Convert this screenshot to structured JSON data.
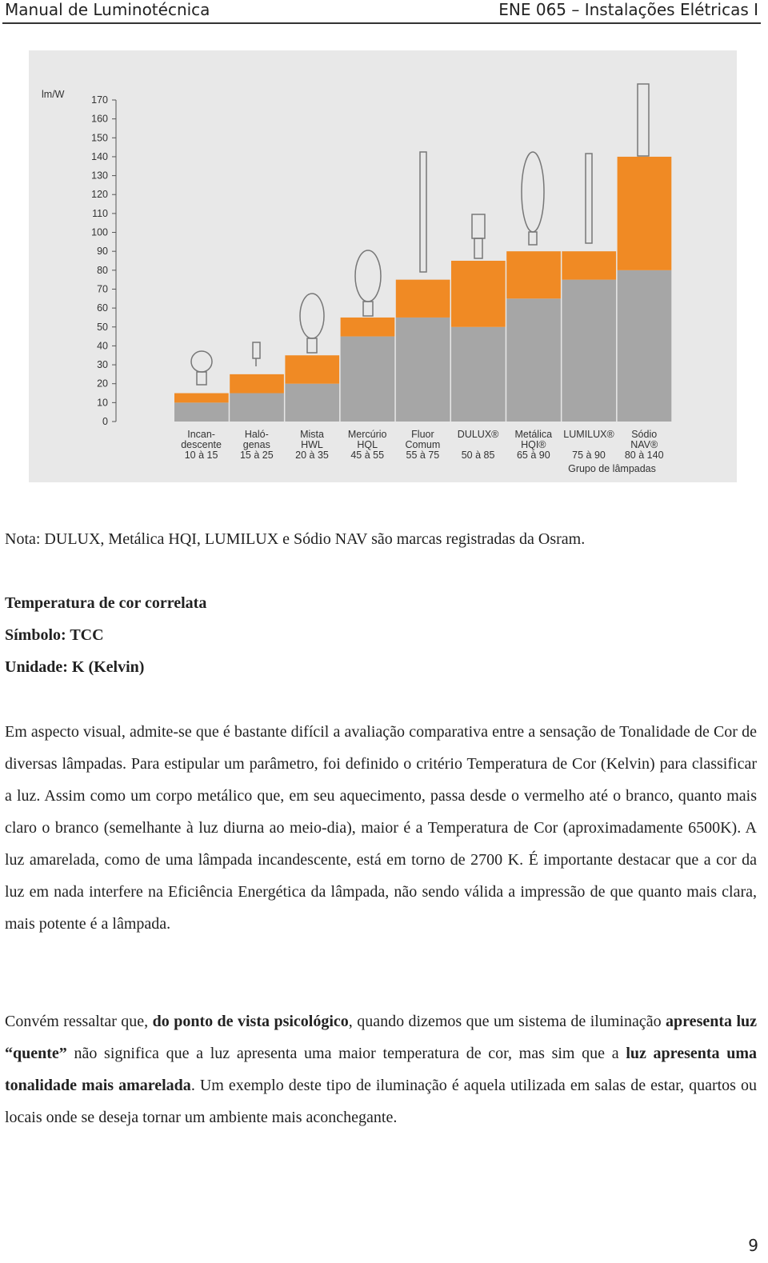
{
  "header": {
    "left": "Manual de Luminotécnica",
    "right": "ENE 065 – Instalações Elétricas I"
  },
  "chart_data": {
    "type": "bar",
    "y_label": "lm/W",
    "x_label": "Grupo de lâmpadas",
    "categories": [
      [
        "Incan-",
        "descente"
      ],
      [
        "Haló-",
        "genas"
      ],
      [
        "Mista",
        "HWL"
      ],
      [
        "Mercúrio",
        "HQL"
      ],
      [
        "Fluor",
        "Comum"
      ],
      [
        "DULUX®"
      ],
      [
        "Metálica",
        "HQI®"
      ],
      [
        "LUMILUX®"
      ],
      [
        "Sódio",
        "NAV®"
      ]
    ],
    "range_labels": [
      "10 à 15",
      "15 à 25",
      "20 à 35",
      "45 à 55",
      "55 à 75",
      "50 à 85",
      "65 à 90",
      "75 à 90",
      "80 à 140"
    ],
    "values_low": [
      10,
      15,
      20,
      45,
      55,
      50,
      65,
      75,
      80
    ],
    "values_high": [
      15,
      25,
      35,
      55,
      75,
      85,
      90,
      90,
      140
    ],
    "low_color": "#a6a6a6",
    "high_color": "#f08a24",
    "ylim": [
      0,
      170
    ],
    "yticks": [
      0,
      10,
      20,
      30,
      40,
      50,
      60,
      70,
      80,
      90,
      100,
      110,
      120,
      130,
      140,
      150,
      160,
      170
    ]
  },
  "note": "Nota: DULUX, Metálica HQI, LUMILUX e Sódio NAV são marcas registradas da Osram.",
  "heading": [
    "Temperatura de cor correlata",
    "Símbolo: TCC",
    "Unidade: K (Kelvin)"
  ],
  "paragraphs": [
    [
      {
        "text": "Em aspecto visual, admite-se que é bastante difícil a avaliação comparativa entre a sensação de Tonalidade de Cor de diversas lâmpadas. Para estipular um parâmetro, foi definido o critério Temperatura de Cor (Kelvin) para classificar a luz. Assim como um corpo metálico que, em seu aquecimento, passa desde o vermelho até o branco, quanto mais claro o branco (semelhante à luz diurna ao meio-dia), maior é a Temperatura de Cor (aproximadamente 6500K). A luz amarelada, como de uma lâmpada incandescente, está em torno de 2700 K. É importante destacar que a cor da luz em nada interfere na Eficiência Energética da lâmpada, não sendo válida a impressão de que quanto mais clara, mais potente é a lâmpada.",
        "bold": false
      }
    ],
    [
      {
        "text": "Convém ressaltar que, ",
        "bold": false
      },
      {
        "text": "do ponto de vista psicológico",
        "bold": true
      },
      {
        "text": ", quando dizemos que um sistema de iluminação ",
        "bold": false
      },
      {
        "text": "apresenta luz “quente”",
        "bold": true
      },
      {
        "text": " não significa que a luz apresenta uma maior temperatura de cor, mas sim que a ",
        "bold": false
      },
      {
        "text": "luz apresenta uma tonalidade mais amarelada",
        "bold": true
      },
      {
        "text": ". Um exemplo deste tipo de iluminação é aquela utilizada em salas de estar, quartos ou locais onde se deseja tornar um ambiente mais aconchegante.",
        "bold": false
      }
    ]
  ],
  "page_number": "9"
}
